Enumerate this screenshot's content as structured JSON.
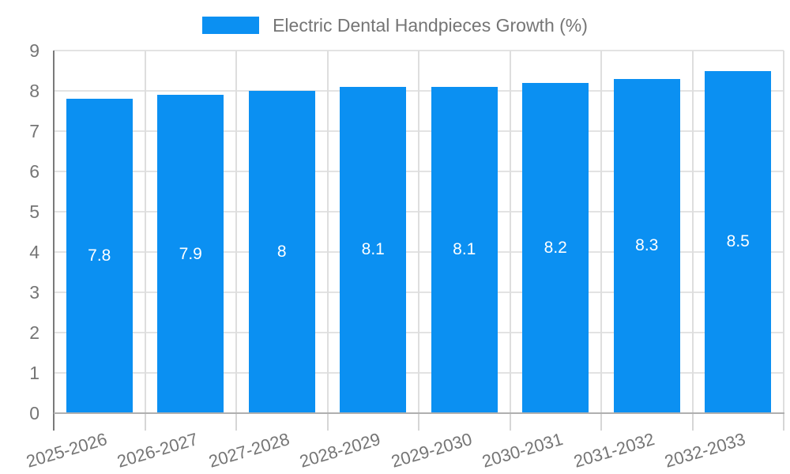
{
  "chart_data": {
    "type": "bar",
    "title": "Electric Dental Handpieces Growth (%)",
    "categories": [
      "2025-2026",
      "2026-2027",
      "2027-2028",
      "2028-2029",
      "2029-2030",
      "2030-2031",
      "2031-2032",
      "2032-2033"
    ],
    "values": [
      7.8,
      7.9,
      8,
      8.1,
      8.1,
      8.2,
      8.3,
      8.5
    ],
    "value_labels": [
      "7.8",
      "7.9",
      "8",
      "8.1",
      "8.1",
      "8.2",
      "8.3",
      "8.5"
    ],
    "xlabel": "",
    "ylabel": "",
    "ylim": [
      0,
      9
    ],
    "yticks": [
      "0",
      "1",
      "2",
      "3",
      "4",
      "5",
      "6",
      "7",
      "8",
      "9"
    ],
    "grid": true,
    "legend_position": "top",
    "bar_color": "#0b90f2",
    "value_label_color": "#ffffff",
    "axis_text_color": "#757575"
  }
}
